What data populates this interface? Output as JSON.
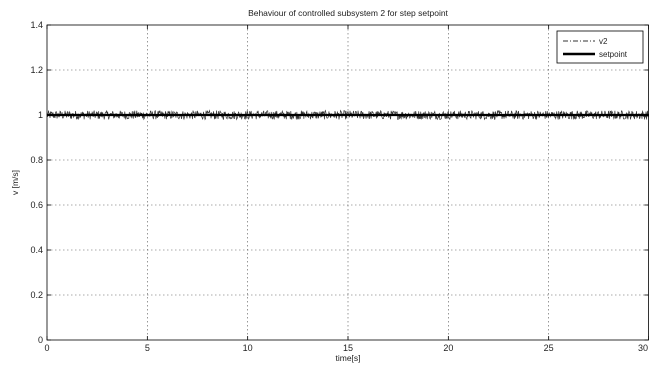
{
  "chart_data": {
    "type": "line",
    "title": "Behaviour of controlled subsystem 2 for step setpoint",
    "xlabel": "time[s]",
    "ylabel": "v [m/s]",
    "xlim": [
      0,
      30
    ],
    "ylim": [
      0,
      1.4
    ],
    "xticks": [
      0,
      5,
      10,
      15,
      20,
      25,
      30
    ],
    "xtick_labels": [
      "0",
      "5",
      "10",
      "15",
      "20",
      "25",
      "30"
    ],
    "yticks": [
      0,
      0.2,
      0.4,
      0.6,
      0.8,
      1,
      1.2,
      1.4
    ],
    "ytick_labels": [
      "0",
      "0.2",
      "0.4",
      "0.6",
      "0.8",
      "1",
      "1.2",
      "1.4"
    ],
    "grid": true,
    "legend_position": "top-right",
    "series": [
      {
        "name": "v2",
        "style": "dash-dot",
        "color": "#333333",
        "description_values": {
          "mean": 1.0,
          "noise_amplitude": 0.02
        },
        "x": [
          0,
          30
        ],
        "y": [
          1.0,
          1.0
        ]
      },
      {
        "name": "setpoint",
        "style": "solid-thick",
        "color": "#000000",
        "x": [
          0,
          30
        ],
        "y": [
          1.0,
          1.0
        ]
      }
    ]
  }
}
